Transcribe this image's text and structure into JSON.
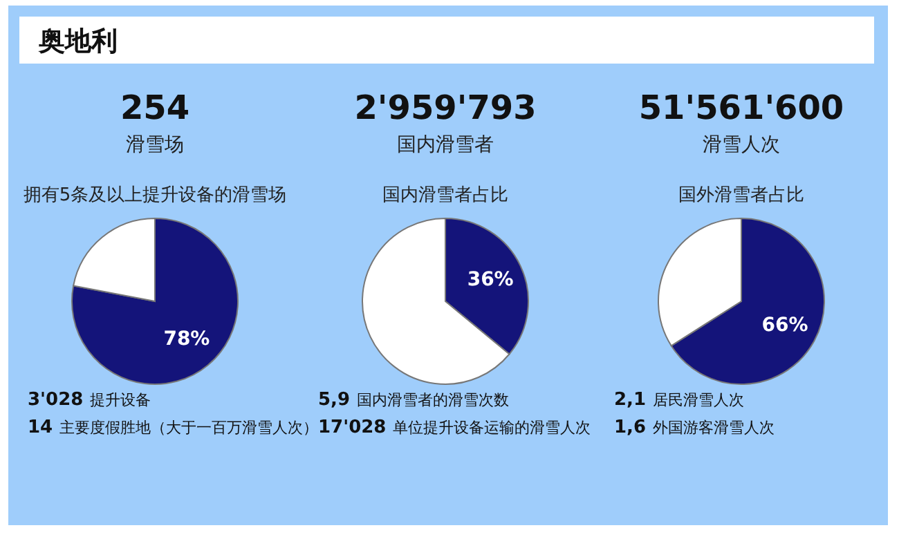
{
  "chart_data": [
    {
      "type": "other",
      "title": "奥地利"
    },
    {
      "type": "pie",
      "title": "254",
      "subtitle": "滑雪场",
      "categories": [
        null,
        null
      ],
      "values": [
        78,
        22
      ],
      "colors": [
        "#14147a",
        "#ffffff"
      ],
      "value_labels": [
        "78%",
        null
      ],
      "annotations": [
        "拥有5条及以上提升设备的滑雪场",
        "3'028 提升设备",
        "14 主要度假胜地（大于一百万滑雪人次）"
      ]
    },
    {
      "type": "pie",
      "title": "2'959'793",
      "subtitle": "国内滑雪者",
      "categories": [
        null,
        null
      ],
      "values": [
        36,
        64
      ],
      "colors": [
        "#14147a",
        "#ffffff"
      ],
      "value_labels": [
        "36%",
        null
      ],
      "annotations": [
        "国内滑雪者占比",
        "5,9 国内滑雪者的滑雪次数",
        "17'028 单位提升设备运输的滑雪人次"
      ]
    },
    {
      "type": "pie",
      "title": "51'561'600",
      "subtitle": "滑雪人次",
      "categories": [
        null,
        null
      ],
      "values": [
        66,
        34
      ],
      "colors": [
        "#14147a",
        "#ffffff"
      ],
      "value_labels": [
        "66%",
        null
      ],
      "annotations": [
        "国外滑雪者占比",
        "2,1 居民滑雪人次",
        "1,6 外国游客滑雪人次"
      ]
    }
  ]
}
